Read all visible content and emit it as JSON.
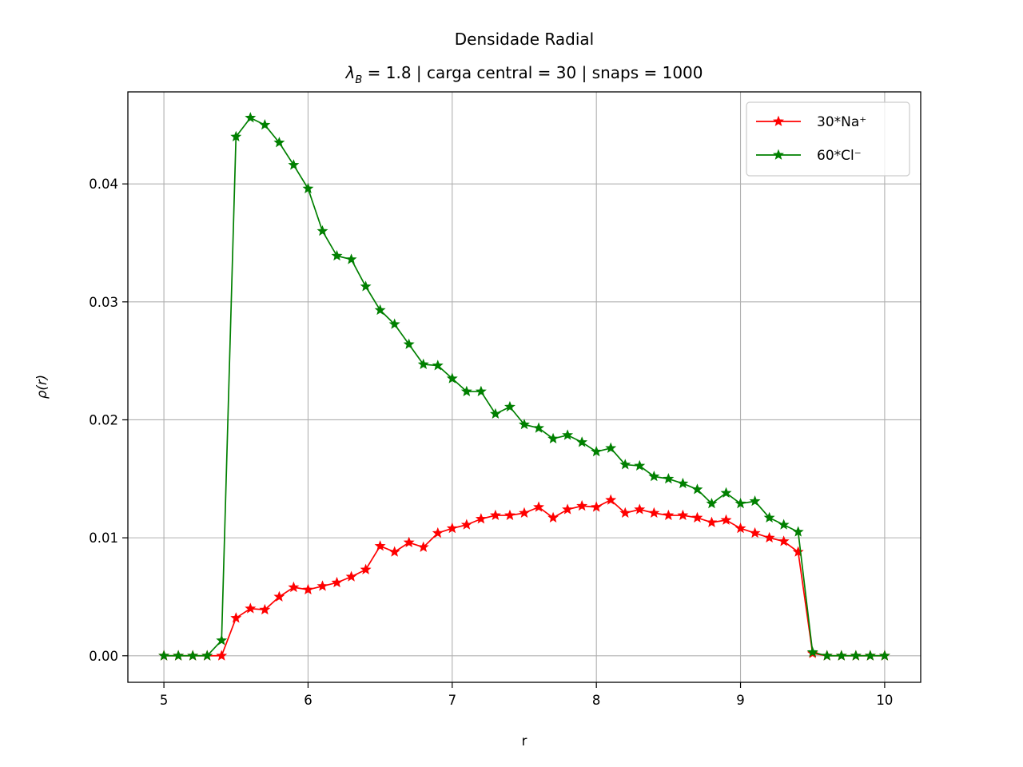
{
  "chart_data": {
    "type": "line",
    "title": "Densidade Radial",
    "subtitle": "λ_B = 1.8 | carga central = 30 | snaps = 1000",
    "xlabel": "r",
    "ylabel": "ρ(r)",
    "xlim": [
      4.75,
      10.25
    ],
    "ylim": [
      -0.00225,
      0.0478
    ],
    "xticks": [
      5,
      6,
      7,
      8,
      9,
      10
    ],
    "xtick_labels": [
      "5",
      "6",
      "7",
      "8",
      "9",
      "10"
    ],
    "yticks": [
      0.0,
      0.01,
      0.02,
      0.03,
      0.04
    ],
    "ytick_labels": [
      "0.00",
      "0.01",
      "0.02",
      "0.03",
      "0.04"
    ],
    "grid": true,
    "legend_position": "top-right",
    "x": [
      5.0,
      5.1,
      5.2,
      5.3,
      5.4,
      5.5,
      5.6,
      5.7,
      5.8,
      5.9,
      6.0,
      6.1,
      6.2,
      6.3,
      6.4,
      6.5,
      6.6,
      6.7,
      6.8,
      6.9,
      7.0,
      7.1,
      7.2,
      7.3,
      7.4,
      7.5,
      7.6,
      7.7,
      7.8,
      7.9,
      8.0,
      8.1,
      8.2,
      8.3,
      8.4,
      8.5,
      8.6,
      8.7,
      8.8,
      8.9,
      9.0,
      9.1,
      9.2,
      9.3,
      9.4,
      9.5,
      9.6,
      9.7,
      9.8,
      9.9,
      10.0
    ],
    "series": [
      {
        "name": "30*Na⁺",
        "color": "#ff0000",
        "marker": "star",
        "values": [
          0,
          0,
          0,
          0,
          0,
          0.0032,
          0.004,
          0.0039,
          0.005,
          0.0058,
          0.0056,
          0.0059,
          0.0062,
          0.0067,
          0.0073,
          0.0093,
          0.0088,
          0.0096,
          0.0092,
          0.0104,
          0.0108,
          0.0111,
          0.0116,
          0.0119,
          0.0119,
          0.0121,
          0.0126,
          0.0117,
          0.0124,
          0.0127,
          0.0126,
          0.0132,
          0.0121,
          0.0124,
          0.0121,
          0.0119,
          0.0119,
          0.0117,
          0.0113,
          0.0115,
          0.0108,
          0.0104,
          0.01,
          0.0097,
          0.0088,
          0.0002,
          0,
          0,
          0,
          0,
          0
        ]
      },
      {
        "name": "60*Cl⁻",
        "color": "#008000",
        "marker": "star",
        "values": [
          0,
          0,
          0,
          0,
          0.0013,
          0.044,
          0.0456,
          0.045,
          0.0435,
          0.0416,
          0.0396,
          0.036,
          0.0339,
          0.0336,
          0.0313,
          0.0293,
          0.0281,
          0.0264,
          0.0247,
          0.0246,
          0.0235,
          0.0224,
          0.0224,
          0.0205,
          0.0211,
          0.0196,
          0.0193,
          0.0184,
          0.0187,
          0.0181,
          0.0173,
          0.0176,
          0.0162,
          0.0161,
          0.0152,
          0.015,
          0.0146,
          0.0141,
          0.0129,
          0.0138,
          0.0129,
          0.0131,
          0.0117,
          0.0111,
          0.0105,
          0.0003,
          0,
          0,
          0,
          0,
          0
        ]
      }
    ]
  }
}
